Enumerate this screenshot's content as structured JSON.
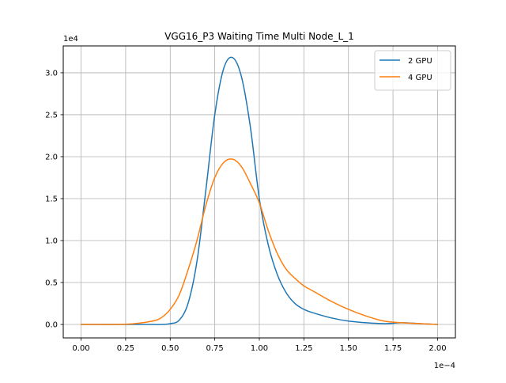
{
  "chart_data": {
    "type": "line",
    "title": "VGG16_P3 Waiting Time Multi Node_L_1",
    "xlabel": "",
    "ylabel": "",
    "x_offset_label": "1e−4",
    "y_offset_label": "1e4",
    "xlim": [
      -0.1,
      2.1
    ],
    "ylim": [
      -0.16,
      3.32
    ],
    "x_ticks": [
      0.0,
      0.25,
      0.5,
      0.75,
      1.0,
      1.25,
      1.5,
      1.75,
      2.0
    ],
    "x_tick_labels": [
      "0.00",
      "0.25",
      "0.50",
      "0.75",
      "1.00",
      "1.25",
      "1.50",
      "1.75",
      "2.00"
    ],
    "y_ticks": [
      0.0,
      0.5,
      1.0,
      1.5,
      2.0,
      2.5,
      3.0
    ],
    "y_tick_labels": [
      "0.0",
      "0.5",
      "1.0",
      "1.5",
      "2.0",
      "2.5",
      "3.0"
    ],
    "grid": true,
    "legend_position": "top-right",
    "x": [
      0.0,
      0.1,
      0.2,
      0.3,
      0.4,
      0.45,
      0.5,
      0.55,
      0.6,
      0.65,
      0.7,
      0.75,
      0.8,
      0.85,
      0.9,
      0.95,
      1.0,
      1.05,
      1.1,
      1.15,
      1.2,
      1.25,
      1.3,
      1.4,
      1.5,
      1.6,
      1.7,
      1.8,
      1.9,
      2.0
    ],
    "series": [
      {
        "name": "2 GPU",
        "color": "#1f77b4",
        "values": [
          0.0,
          0.0,
          0.0,
          0.0,
          0.0,
          0.0,
          0.01,
          0.05,
          0.25,
          0.75,
          1.6,
          2.5,
          3.05,
          3.18,
          2.95,
          2.35,
          1.5,
          0.95,
          0.6,
          0.38,
          0.25,
          0.18,
          0.14,
          0.08,
          0.04,
          0.02,
          0.01,
          0.02,
          0.01,
          0.0
        ]
      },
      {
        "name": "4 GPU",
        "color": "#ff7f0e",
        "values": [
          0.0,
          0.0,
          0.0,
          0.01,
          0.04,
          0.08,
          0.18,
          0.35,
          0.65,
          1.0,
          1.42,
          1.75,
          1.93,
          1.97,
          1.88,
          1.68,
          1.45,
          1.12,
          0.85,
          0.66,
          0.55,
          0.46,
          0.4,
          0.28,
          0.18,
          0.1,
          0.04,
          0.02,
          0.01,
          0.0
        ]
      }
    ]
  }
}
